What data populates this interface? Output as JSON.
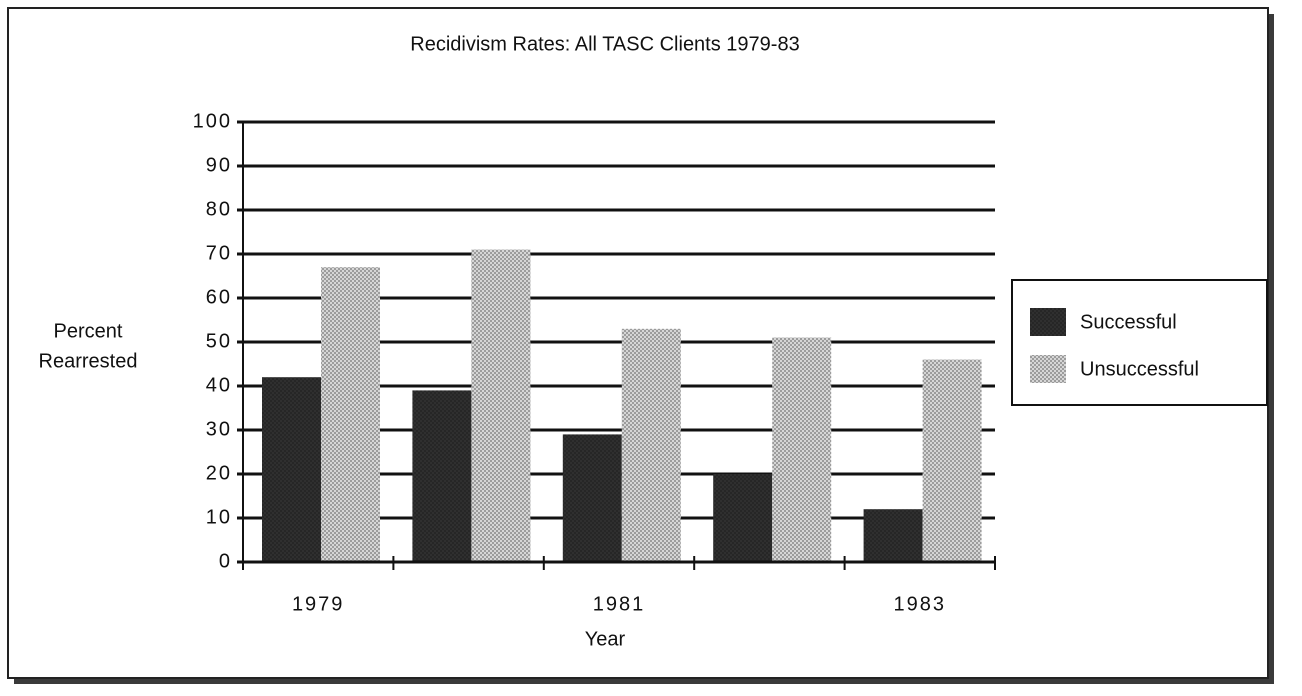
{
  "chart_data": {
    "type": "bar",
    "title": "Recidivism Rates: All TASC Clients 1979-83",
    "ylabel": [
      "Percent",
      "Rearrested"
    ],
    "xlabel": "Year",
    "categories": [
      "1979",
      null,
      "1981",
      null,
      "1983"
    ],
    "series": [
      {
        "name": "Successful",
        "color": "#262626",
        "values": [
          42,
          39,
          29,
          20,
          12
        ]
      },
      {
        "name": "Unsuccessful",
        "color": "#9c9c9c",
        "values": [
          67,
          71,
          53,
          51,
          46
        ]
      }
    ],
    "ylim": [
      0,
      100
    ],
    "yticks": [
      0,
      10,
      20,
      30,
      40,
      50,
      60,
      70,
      80,
      90,
      100
    ],
    "grid": true,
    "legend": "right"
  }
}
